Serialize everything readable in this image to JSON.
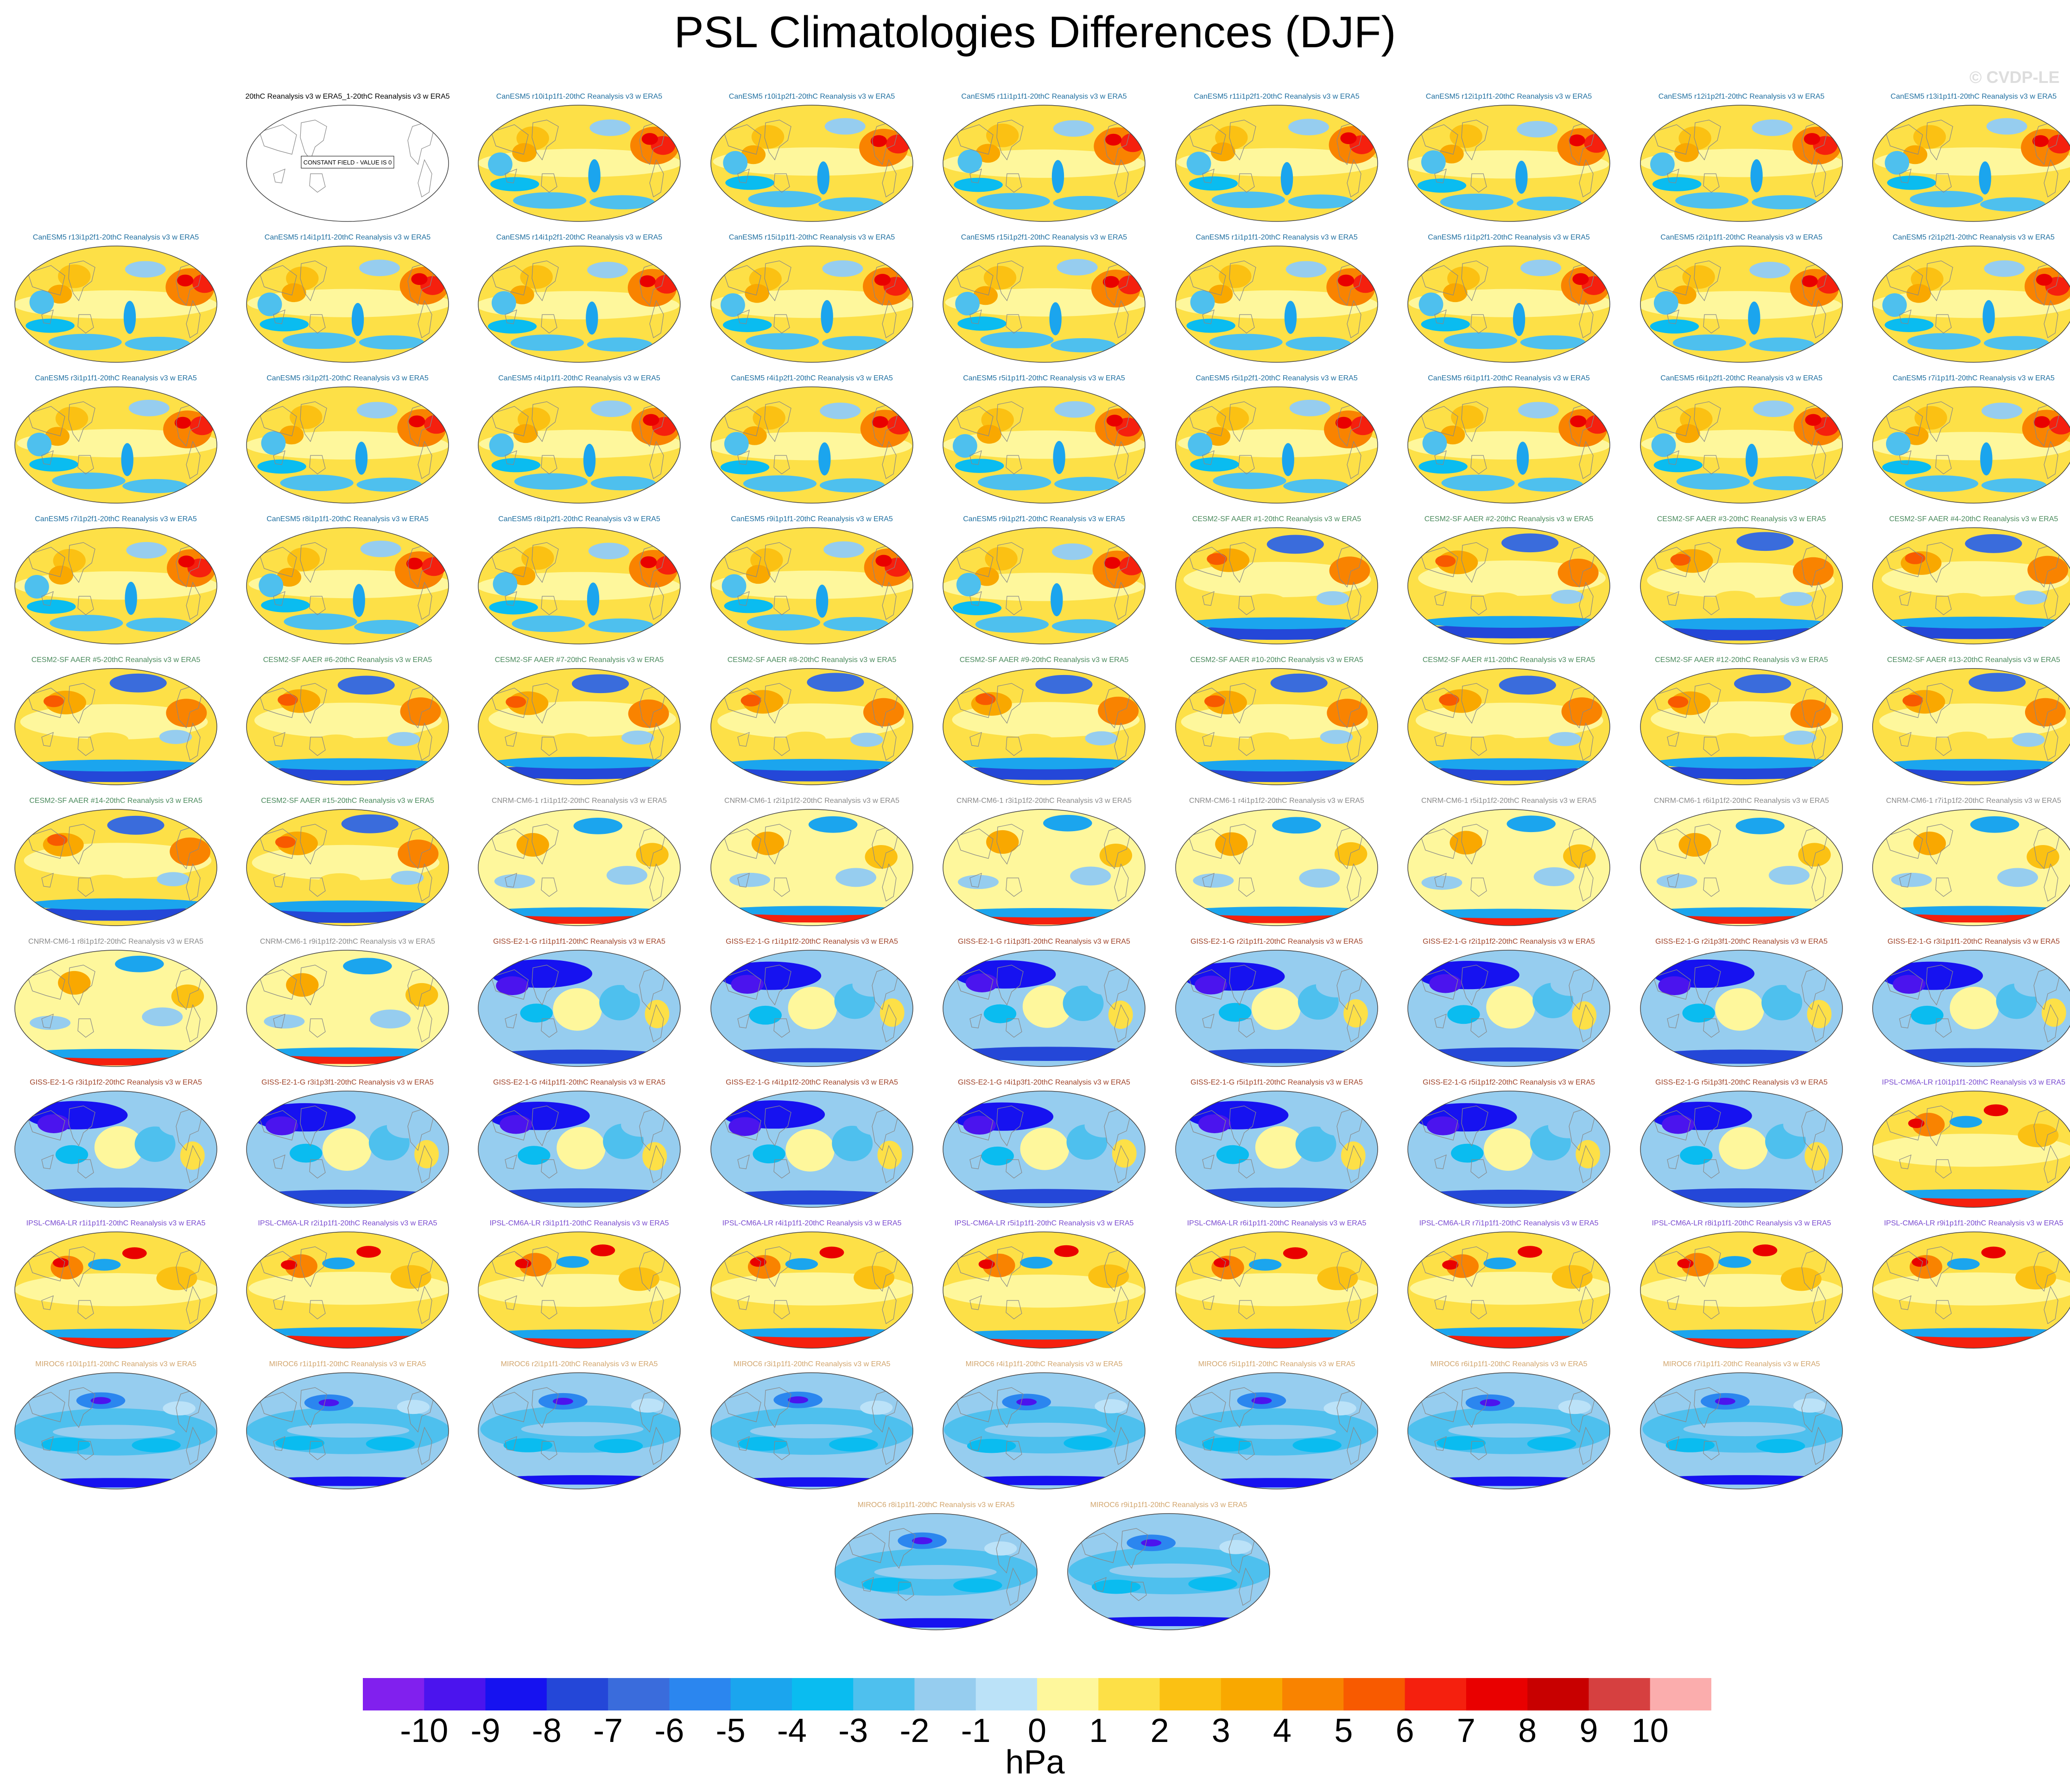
{
  "title": "PSL Climatologies Differences (DJF)",
  "watermark": "© CVDP-LE",
  "colorbar": {
    "units": "hPa",
    "ticks": [
      "-10",
      "-9",
      "-8",
      "-7",
      "-6",
      "-5",
      "-4",
      "-3",
      "-2",
      "-1",
      "0",
      "1",
      "2",
      "3",
      "4",
      "5",
      "6",
      "7",
      "8",
      "9",
      "10"
    ],
    "colors": [
      "#8120ee",
      "#4b14ee",
      "#1612f0",
      "#2447d8",
      "#3a6cdc",
      "#2b86ef",
      "#1ba5ee",
      "#0abcf0",
      "#4ec0ee",
      "#96cdef",
      "#bbe2f8",
      "#fef79c",
      "#fde047",
      "#fbc113",
      "#f9a800",
      "#f98300",
      "#f85a00",
      "#f5200e",
      "#e90000",
      "#c80000",
      "#d64040",
      "#fbadad"
    ]
  },
  "constant_field_note": "CONSTANT FIELD - VALUE IS 0",
  "panels": [
    {
      "label": "20thC Reanalysis v3 w ERA5_1-20thC Reanalysis v3 w ERA5",
      "group": "obs"
    },
    {
      "label": "CanESM5 r10i1p1f1-20thC Reanalysis v3 w ERA5",
      "group": "can1"
    },
    {
      "label": "CanESM5 r10i1p2f1-20thC Reanalysis v3 w ERA5",
      "group": "can2"
    },
    {
      "label": "CanESM5 r11i1p1f1-20thC Reanalysis v3 w ERA5",
      "group": "can1"
    },
    {
      "label": "CanESM5 r11i1p2f1-20thC Reanalysis v3 w ERA5",
      "group": "can2"
    },
    {
      "label": "CanESM5 r12i1p1f1-20thC Reanalysis v3 w ERA5",
      "group": "can1"
    },
    {
      "label": "CanESM5 r12i1p2f1-20thC Reanalysis v3 w ERA5",
      "group": "can2"
    },
    {
      "label": "CanESM5 r13i1p1f1-20thC Reanalysis v3 w ERA5",
      "group": "can1"
    },
    {
      "label": "CanESM5 r13i1p2f1-20thC Reanalysis v3 w ERA5",
      "group": "can2"
    },
    {
      "label": "CanESM5 r14i1p1f1-20thC Reanalysis v3 w ERA5",
      "group": "can1"
    },
    {
      "label": "CanESM5 r14i1p2f1-20thC Reanalysis v3 w ERA5",
      "group": "can2"
    },
    {
      "label": "CanESM5 r15i1p1f1-20thC Reanalysis v3 w ERA5",
      "group": "can1"
    },
    {
      "label": "CanESM5 r15i1p2f1-20thC Reanalysis v3 w ERA5",
      "group": "can2"
    },
    {
      "label": "CanESM5 r1i1p1f1-20thC Reanalysis v3 w ERA5",
      "group": "can1"
    },
    {
      "label": "CanESM5 r1i1p2f1-20thC Reanalysis v3 w ERA5",
      "group": "can2"
    },
    {
      "label": "CanESM5 r2i1p1f1-20thC Reanalysis v3 w ERA5",
      "group": "can1"
    },
    {
      "label": "CanESM5 r2i1p2f1-20thC Reanalysis v3 w ERA5",
      "group": "can2"
    },
    {
      "label": "CanESM5 r3i1p1f1-20thC Reanalysis v3 w ERA5",
      "group": "can1"
    },
    {
      "label": "CanESM5 r3i1p2f1-20thC Reanalysis v3 w ERA5",
      "group": "can2"
    },
    {
      "label": "CanESM5 r4i1p1f1-20thC Reanalysis v3 w ERA5",
      "group": "can1"
    },
    {
      "label": "CanESM5 r4i1p2f1-20thC Reanalysis v3 w ERA5",
      "group": "can2"
    },
    {
      "label": "CanESM5 r5i1p1f1-20thC Reanalysis v3 w ERA5",
      "group": "can1"
    },
    {
      "label": "CanESM5 r5i1p2f1-20thC Reanalysis v3 w ERA5",
      "group": "can2"
    },
    {
      "label": "CanESM5 r6i1p1f1-20thC Reanalysis v3 w ERA5",
      "group": "can1"
    },
    {
      "label": "CanESM5 r6i1p2f1-20thC Reanalysis v3 w ERA5",
      "group": "can2"
    },
    {
      "label": "CanESM5 r7i1p1f1-20thC Reanalysis v3 w ERA5",
      "group": "can1"
    },
    {
      "label": "CanESM5 r7i1p2f1-20thC Reanalysis v3 w ERA5",
      "group": "can2"
    },
    {
      "label": "CanESM5 r8i1p1f1-20thC Reanalysis v3 w ERA5",
      "group": "can1"
    },
    {
      "label": "CanESM5 r8i1p2f1-20thC Reanalysis v3 w ERA5",
      "group": "can2"
    },
    {
      "label": "CanESM5 r9i1p1f1-20thC Reanalysis v3 w ERA5",
      "group": "can1"
    },
    {
      "label": "CanESM5 r9i1p2f1-20thC Reanalysis v3 w ERA5",
      "group": "can2"
    },
    {
      "label": "CESM2-SF AAER #1-20thC Reanalysis v3 w ERA5",
      "group": "cesm"
    },
    {
      "label": "CESM2-SF AAER #2-20thC Reanalysis v3 w ERA5",
      "group": "cesm"
    },
    {
      "label": "CESM2-SF AAER #3-20thC Reanalysis v3 w ERA5",
      "group": "cesm"
    },
    {
      "label": "CESM2-SF AAER #4-20thC Reanalysis v3 w ERA5",
      "group": "cesm"
    },
    {
      "label": "CESM2-SF AAER #5-20thC Reanalysis v3 w ERA5",
      "group": "cesm"
    },
    {
      "label": "CESM2-SF AAER #6-20thC Reanalysis v3 w ERA5",
      "group": "cesm"
    },
    {
      "label": "CESM2-SF AAER #7-20thC Reanalysis v3 w ERA5",
      "group": "cesm"
    },
    {
      "label": "CESM2-SF AAER #8-20thC Reanalysis v3 w ERA5",
      "group": "cesm"
    },
    {
      "label": "CESM2-SF AAER #9-20thC Reanalysis v3 w ERA5",
      "group": "cesm"
    },
    {
      "label": "CESM2-SF AAER #10-20thC Reanalysis v3 w ERA5",
      "group": "cesm"
    },
    {
      "label": "CESM2-SF AAER #11-20thC Reanalysis v3 w ERA5",
      "group": "cesm"
    },
    {
      "label": "CESM2-SF AAER #12-20thC Reanalysis v3 w ERA5",
      "group": "cesm"
    },
    {
      "label": "CESM2-SF AAER #13-20thC Reanalysis v3 w ERA5",
      "group": "cesm"
    },
    {
      "label": "CESM2-SF AAER #14-20thC Reanalysis v3 w ERA5",
      "group": "cesm"
    },
    {
      "label": "CESM2-SF AAER #15-20thC Reanalysis v3 w ERA5",
      "group": "cesm"
    },
    {
      "label": "CNRM-CM6-1 r1i1p1f2-20thC Reanalysis v3 w ERA5",
      "group": "cnrm"
    },
    {
      "label": "CNRM-CM6-1 r2i1p1f2-20thC Reanalysis v3 w ERA5",
      "group": "cnrm"
    },
    {
      "label": "CNRM-CM6-1 r3i1p1f2-20thC Reanalysis v3 w ERA5",
      "group": "cnrm"
    },
    {
      "label": "CNRM-CM6-1 r4i1p1f2-20thC Reanalysis v3 w ERA5",
      "group": "cnrm"
    },
    {
      "label": "CNRM-CM6-1 r5i1p1f2-20thC Reanalysis v3 w ERA5",
      "group": "cnrm"
    },
    {
      "label": "CNRM-CM6-1 r6i1p1f2-20thC Reanalysis v3 w ERA5",
      "group": "cnrm"
    },
    {
      "label": "CNRM-CM6-1 r7i1p1f2-20thC Reanalysis v3 w ERA5",
      "group": "cnrm"
    },
    {
      "label": "CNRM-CM6-1 r8i1p1f2-20thC Reanalysis v3 w ERA5",
      "group": "cnrm"
    },
    {
      "label": "CNRM-CM6-1 r9i1p1f2-20thC Reanalysis v3 w ERA5",
      "group": "cnrm"
    },
    {
      "label": "GISS-E2-1-G r1i1p1f1-20thC Reanalysis v3 w ERA5",
      "group": "giss"
    },
    {
      "label": "GISS-E2-1-G r1i1p1f2-20thC Reanalysis v3 w ERA5",
      "group": "giss"
    },
    {
      "label": "GISS-E2-1-G r1i1p3f1-20thC Reanalysis v3 w ERA5",
      "group": "giss"
    },
    {
      "label": "GISS-E2-1-G r2i1p1f1-20thC Reanalysis v3 w ERA5",
      "group": "giss"
    },
    {
      "label": "GISS-E2-1-G r2i1p1f2-20thC Reanalysis v3 w ERA5",
      "group": "giss"
    },
    {
      "label": "GISS-E2-1-G r2i1p3f1-20thC Reanalysis v3 w ERA5",
      "group": "giss"
    },
    {
      "label": "GISS-E2-1-G r3i1p1f1-20thC Reanalysis v3 w ERA5",
      "group": "giss"
    },
    {
      "label": "GISS-E2-1-G r3i1p1f2-20thC Reanalysis v3 w ERA5",
      "group": "giss"
    },
    {
      "label": "GISS-E2-1-G r3i1p3f1-20thC Reanalysis v3 w ERA5",
      "group": "giss"
    },
    {
      "label": "GISS-E2-1-G r4i1p1f1-20thC Reanalysis v3 w ERA5",
      "group": "giss"
    },
    {
      "label": "GISS-E2-1-G r4i1p1f2-20thC Reanalysis v3 w ERA5",
      "group": "giss"
    },
    {
      "label": "GISS-E2-1-G r4i1p3f1-20thC Reanalysis v3 w ERA5",
      "group": "giss"
    },
    {
      "label": "GISS-E2-1-G r5i1p1f1-20thC Reanalysis v3 w ERA5",
      "group": "giss"
    },
    {
      "label": "GISS-E2-1-G r5i1p1f2-20thC Reanalysis v3 w ERA5",
      "group": "giss"
    },
    {
      "label": "GISS-E2-1-G r5i1p3f1-20thC Reanalysis v3 w ERA5",
      "group": "giss"
    },
    {
      "label": "IPSL-CM6A-LR r10i1p1f1-20thC Reanalysis v3 w ERA5",
      "group": "ipsl"
    },
    {
      "label": "IPSL-CM6A-LR r1i1p1f1-20thC Reanalysis v3 w ERA5",
      "group": "ipsl"
    },
    {
      "label": "IPSL-CM6A-LR r2i1p1f1-20thC Reanalysis v3 w ERA5",
      "group": "ipsl"
    },
    {
      "label": "IPSL-CM6A-LR r3i1p1f1-20thC Reanalysis v3 w ERA5",
      "group": "ipsl"
    },
    {
      "label": "IPSL-CM6A-LR r4i1p1f1-20thC Reanalysis v3 w ERA5",
      "group": "ipsl"
    },
    {
      "label": "IPSL-CM6A-LR r5i1p1f1-20thC Reanalysis v3 w ERA5",
      "group": "ipsl"
    },
    {
      "label": "IPSL-CM6A-LR r6i1p1f1-20thC Reanalysis v3 w ERA5",
      "group": "ipsl"
    },
    {
      "label": "IPSL-CM6A-LR r7i1p1f1-20thC Reanalysis v3 w ERA5",
      "group": "ipsl"
    },
    {
      "label": "IPSL-CM6A-LR r8i1p1f1-20thC Reanalysis v3 w ERA5",
      "group": "ipsl"
    },
    {
      "label": "IPSL-CM6A-LR r9i1p1f1-20thC Reanalysis v3 w ERA5",
      "group": "ipsl"
    },
    {
      "label": "MIROC6 r10i1p1f1-20thC Reanalysis v3 w ERA5",
      "group": "miroc"
    },
    {
      "label": "MIROC6 r1i1p1f1-20thC Reanalysis v3 w ERA5",
      "group": "miroc"
    },
    {
      "label": "MIROC6 r2i1p1f1-20thC Reanalysis v3 w ERA5",
      "group": "miroc"
    },
    {
      "label": "MIROC6 r3i1p1f1-20thC Reanalysis v3 w ERA5",
      "group": "miroc"
    },
    {
      "label": "MIROC6 r4i1p1f1-20thC Reanalysis v3 w ERA5",
      "group": "miroc"
    },
    {
      "label": "MIROC6 r5i1p1f1-20thC Reanalysis v3 w ERA5",
      "group": "miroc"
    },
    {
      "label": "MIROC6 r6i1p1f1-20thC Reanalysis v3 w ERA5",
      "group": "miroc"
    },
    {
      "label": "MIROC6 r7i1p1f1-20thC Reanalysis v3 w ERA5",
      "group": "miroc"
    },
    {
      "label": "MIROC6 r8i1p1f1-20thC Reanalysis v3 w ERA5",
      "group": "miroc"
    },
    {
      "label": "MIROC6 r9i1p1f1-20thC Reanalysis v3 w ERA5",
      "group": "miroc"
    }
  ],
  "groups": {
    "obs": {
      "title_color": "#000000",
      "field": "none"
    },
    "can1": {
      "title_color": "#1f6fa0",
      "field": "canesm"
    },
    "can2": {
      "title_color": "#1f6fa0",
      "field": "canesm"
    },
    "cesm": {
      "title_color": "#4a8a5c",
      "field": "cesm"
    },
    "cnrm": {
      "title_color": "#8a8a8a",
      "field": "cnrm"
    },
    "giss": {
      "title_color": "#a0442a",
      "field": "giss"
    },
    "ipsl": {
      "title_color": "#7a4bd0",
      "field": "ipsl"
    },
    "miroc": {
      "title_color": "#d2a66e",
      "field": "miroc"
    }
  }
}
